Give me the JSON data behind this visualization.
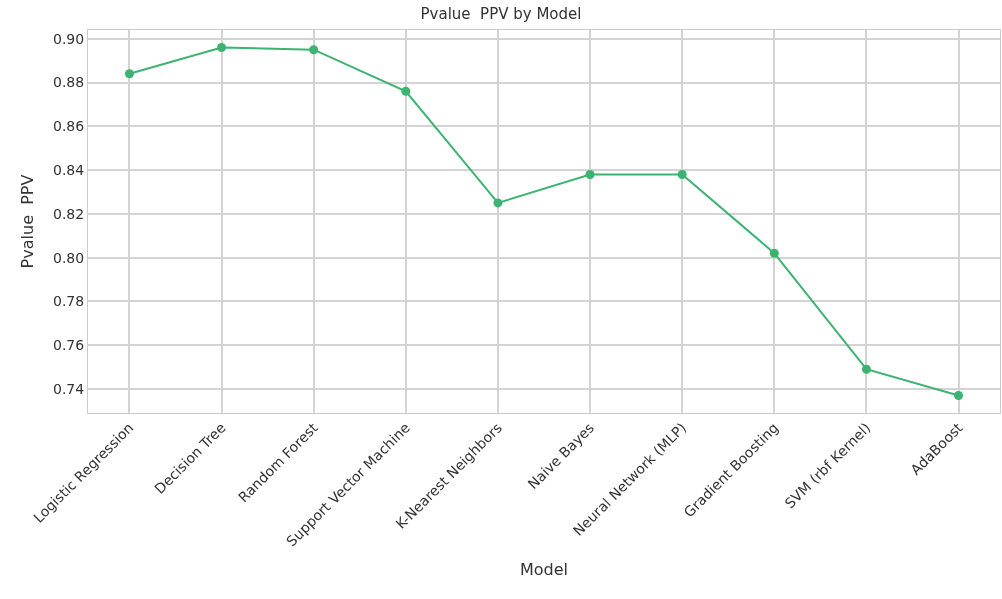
{
  "chart_data": {
    "type": "line",
    "title": "Pvalue  PPV by Model",
    "xlabel": "Model",
    "ylabel": "Pvalue  PPV",
    "categories": [
      "Logistic Regression",
      "Decision Tree",
      "Random Forest",
      "Support Vector Machine",
      "K-Nearest Neighbors",
      "Naive Bayes",
      "Neural Network (MLP)",
      "Gradient Boosting",
      "SVM (rbf Kernel)",
      "AdaBoost"
    ],
    "series": [
      {
        "color": "#3cb371",
        "values": [
          0.884,
          0.896,
          0.895,
          0.876,
          0.825,
          0.838,
          0.838,
          0.802,
          0.749,
          0.737
        ]
      }
    ],
    "ylim": [
      0.729,
      0.904
    ],
    "yticks": [
      {
        "value": 0.74,
        "label": "0.74"
      },
      {
        "value": 0.76,
        "label": "0.76"
      },
      {
        "value": 0.78,
        "label": "0.78"
      },
      {
        "value": 0.8,
        "label": "0.80"
      },
      {
        "value": 0.82,
        "label": "0.82"
      },
      {
        "value": 0.84,
        "label": "0.84"
      },
      {
        "value": 0.86,
        "label": "0.86"
      },
      {
        "value": 0.88,
        "label": "0.88"
      },
      {
        "value": 0.9,
        "label": "0.90"
      }
    ],
    "grid": true,
    "marker": "circle",
    "line_style": "solid"
  }
}
